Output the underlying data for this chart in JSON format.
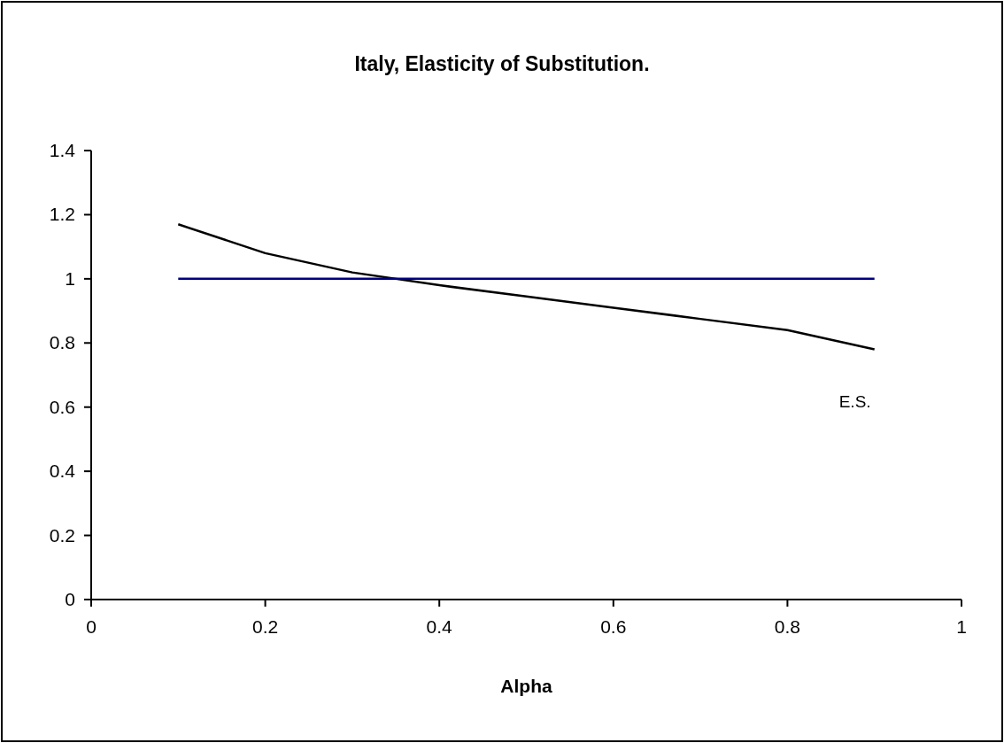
{
  "chart_data": {
    "type": "line",
    "title": "Italy, Elasticity of Substitution.",
    "xlabel": "Alpha",
    "xlim": [
      0,
      1
    ],
    "xticks": [
      0,
      0.2,
      0.4,
      0.6,
      0.8,
      1
    ],
    "ylim": [
      0,
      1.4
    ],
    "yticks": [
      0,
      0.2,
      0.4,
      0.6,
      0.8,
      1,
      1.2,
      1.4
    ],
    "grid": false,
    "marker": "none",
    "series": [
      {
        "name": "E.S.",
        "color": "#000000",
        "x": [
          0.1,
          0.2,
          0.3,
          0.4,
          0.5,
          0.6,
          0.7,
          0.8,
          0.9
        ],
        "values": [
          1.17,
          1.08,
          1.02,
          0.98,
          0.945,
          0.91,
          0.875,
          0.84,
          0.78
        ]
      },
      {
        "color": "#000080",
        "x": [
          0.1,
          0.9
        ],
        "values": [
          1,
          1
        ]
      }
    ]
  }
}
